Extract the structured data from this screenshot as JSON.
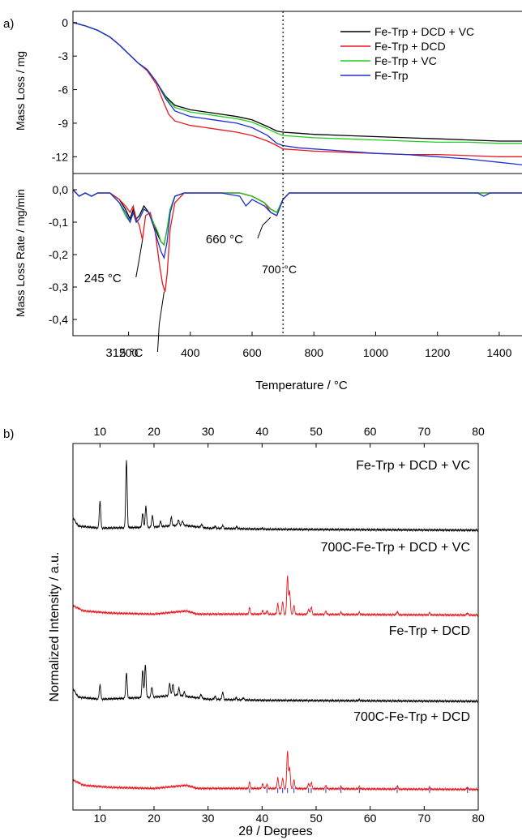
{
  "panel_labels": [
    "a)",
    "b)"
  ],
  "colors": {
    "Fe-Trp + DCD + VC": "#000000",
    "Fe-Trp + DCD": "#e8191e",
    "Fe-Trp + VC": "#22cc22",
    "Fe-Trp": "#1f2fd0",
    "reference_ticks": "#3333cc"
  },
  "chart_data": [
    {
      "id": "tga",
      "type": "line",
      "title": "",
      "xlabel": "Temperature / °C",
      "ylabel": "Mass Loss / mg",
      "xlim": [
        20,
        1500
      ],
      "ylim": [
        -13.5,
        1.0
      ],
      "yticks": [
        0,
        -3,
        -6,
        -9,
        -12
      ],
      "ytick_labels": [
        "0",
        "-3",
        "-6",
        "-9",
        "-12"
      ],
      "legend_position": "top-right",
      "grid": false,
      "series": [
        {
          "name": "Fe-Trp + DCD + VC",
          "x": [
            20,
            60,
            100,
            140,
            170,
            200,
            230,
            260,
            290,
            320,
            350,
            400,
            450,
            500,
            550,
            600,
            650,
            680,
            700,
            750,
            800,
            900,
            1000,
            1100,
            1200,
            1300,
            1400,
            1500
          ],
          "y": [
            0,
            -0.3,
            -0.7,
            -1.3,
            -2.0,
            -2.8,
            -3.6,
            -4.2,
            -5.3,
            -6.6,
            -7.4,
            -7.8,
            -8.0,
            -8.2,
            -8.4,
            -8.7,
            -9.3,
            -9.7,
            -9.8,
            -9.9,
            -10.0,
            -10.1,
            -10.2,
            -10.3,
            -10.4,
            -10.5,
            -10.6,
            -10.6
          ]
        },
        {
          "name": "Fe-Trp + DCD",
          "x": [
            20,
            60,
            100,
            140,
            170,
            200,
            230,
            260,
            290,
            310,
            330,
            350,
            400,
            450,
            500,
            550,
            600,
            650,
            680,
            700,
            750,
            800,
            900,
            1000,
            1100,
            1200,
            1300,
            1400,
            1500
          ],
          "y": [
            0,
            -0.3,
            -0.7,
            -1.3,
            -2.0,
            -2.8,
            -3.6,
            -4.3,
            -5.5,
            -6.9,
            -8.2,
            -8.8,
            -9.2,
            -9.4,
            -9.6,
            -9.8,
            -10.1,
            -10.6,
            -11.0,
            -11.3,
            -11.4,
            -11.5,
            -11.6,
            -11.7,
            -11.8,
            -11.8,
            -11.9,
            -12.0,
            -12.0
          ]
        },
        {
          "name": "Fe-Trp + VC",
          "x": [
            20,
            60,
            100,
            140,
            170,
            200,
            230,
            260,
            290,
            320,
            350,
            400,
            450,
            500,
            550,
            600,
            650,
            680,
            700,
            750,
            800,
            900,
            1000,
            1100,
            1200,
            1300,
            1400,
            1500
          ],
          "y": [
            0,
            -0.3,
            -0.7,
            -1.3,
            -2.0,
            -2.8,
            -3.6,
            -4.2,
            -5.3,
            -6.7,
            -7.6,
            -8.0,
            -8.2,
            -8.4,
            -8.6,
            -8.9,
            -9.5,
            -9.9,
            -10.1,
            -10.2,
            -10.3,
            -10.4,
            -10.5,
            -10.6,
            -10.7,
            -10.7,
            -10.8,
            -10.8
          ]
        },
        {
          "name": "Fe-Trp",
          "x": [
            20,
            60,
            100,
            140,
            170,
            200,
            230,
            260,
            290,
            320,
            350,
            400,
            450,
            500,
            550,
            600,
            650,
            680,
            700,
            750,
            800,
            900,
            1000,
            1100,
            1200,
            1300,
            1400,
            1500
          ],
          "y": [
            0,
            -0.3,
            -0.7,
            -1.3,
            -2.0,
            -2.8,
            -3.6,
            -4.2,
            -5.3,
            -6.8,
            -7.9,
            -8.4,
            -8.6,
            -8.8,
            -9.0,
            -9.4,
            -10.1,
            -10.8,
            -11.0,
            -11.2,
            -11.3,
            -11.5,
            -11.7,
            -11.8,
            -12.0,
            -12.2,
            -12.5,
            -12.8
          ]
        }
      ]
    },
    {
      "id": "dtg",
      "type": "line",
      "title": "",
      "xlabel": "Temperature / °C",
      "ylabel": "Mass Loss Rate / mg/min",
      "xlim": [
        20,
        1500
      ],
      "ylim": [
        -0.45,
        0.05
      ],
      "xticks": [
        200,
        400,
        600,
        800,
        1000,
        1200,
        1400
      ],
      "xtick_labels": [
        "200",
        "400",
        "600",
        "800",
        "1000",
        "1200",
        "1400"
      ],
      "yticks": [
        0.0,
        -0.1,
        -0.2,
        -0.3,
        -0.4
      ],
      "ytick_labels": [
        "0,0",
        "-0,1",
        "-0,2",
        "-0,3",
        "-0,4"
      ],
      "vertical_marker": {
        "x": 700,
        "label": "700 °C"
      },
      "annotations": [
        {
          "text": "245 °C",
          "x": 245,
          "y": -0.155
        },
        {
          "text": "315 °C",
          "x": 315,
          "y": -0.315
        },
        {
          "text": "660 °C",
          "x": 660,
          "y": -0.085
        }
      ],
      "series": [
        {
          "name": "Fe-Trp + DCD + VC",
          "x": [
            20,
            40,
            60,
            80,
            100,
            140,
            170,
            190,
            205,
            215,
            225,
            235,
            250,
            265,
            280,
            295,
            305,
            315,
            325,
            335,
            350,
            380,
            420,
            500,
            560,
            600,
            640,
            660,
            680,
            700,
            720,
            800,
            1000,
            1200,
            1350,
            1400,
            1500
          ],
          "y": [
            0,
            -0.02,
            -0.01,
            -0.02,
            -0.01,
            -0.01,
            -0.03,
            -0.06,
            -0.09,
            -0.06,
            -0.09,
            -0.08,
            -0.05,
            -0.07,
            -0.1,
            -0.14,
            -0.16,
            -0.17,
            -0.12,
            -0.06,
            -0.02,
            -0.01,
            -0.01,
            -0.01,
            -0.01,
            -0.02,
            -0.04,
            -0.06,
            -0.07,
            -0.03,
            -0.01,
            -0.01,
            -0.01,
            -0.01,
            -0.01,
            -0.01,
            -0.01
          ]
        },
        {
          "name": "Fe-Trp + DCD",
          "x": [
            20,
            40,
            60,
            80,
            100,
            140,
            170,
            190,
            205,
            215,
            225,
            235,
            245,
            255,
            270,
            285,
            300,
            310,
            318,
            325,
            335,
            350,
            380,
            420,
            500,
            560,
            600,
            640,
            660,
            680,
            700,
            720,
            800,
            1000,
            1200,
            1350,
            1400,
            1500
          ],
          "y": [
            0,
            -0.02,
            -0.01,
            -0.02,
            -0.01,
            -0.01,
            -0.03,
            -0.05,
            -0.07,
            -0.05,
            -0.09,
            -0.11,
            -0.155,
            -0.08,
            -0.07,
            -0.12,
            -0.23,
            -0.29,
            -0.315,
            -0.26,
            -0.12,
            -0.04,
            -0.01,
            -0.01,
            -0.01,
            -0.01,
            -0.02,
            -0.04,
            -0.07,
            -0.08,
            -0.03,
            -0.01,
            -0.01,
            -0.01,
            -0.01,
            -0.01,
            -0.01,
            -0.01
          ]
        },
        {
          "name": "Fe-Trp + VC",
          "x": [
            20,
            40,
            60,
            80,
            100,
            140,
            170,
            190,
            205,
            215,
            225,
            235,
            250,
            265,
            280,
            295,
            305,
            315,
            325,
            335,
            350,
            380,
            420,
            500,
            560,
            600,
            640,
            660,
            680,
            700,
            720,
            800,
            1000,
            1200,
            1350,
            1400,
            1500
          ],
          "y": [
            0,
            -0.02,
            -0.01,
            -0.02,
            -0.01,
            -0.01,
            -0.04,
            -0.08,
            -0.1,
            -0.07,
            -0.1,
            -0.09,
            -0.06,
            -0.07,
            -0.1,
            -0.13,
            -0.16,
            -0.17,
            -0.12,
            -0.06,
            -0.02,
            -0.01,
            -0.01,
            -0.01,
            -0.01,
            -0.02,
            -0.04,
            -0.06,
            -0.07,
            -0.03,
            -0.01,
            -0.01,
            -0.01,
            -0.01,
            -0.01,
            -0.01,
            -0.01
          ]
        },
        {
          "name": "Fe-Trp",
          "x": [
            20,
            40,
            60,
            80,
            100,
            140,
            170,
            190,
            205,
            215,
            225,
            235,
            250,
            265,
            280,
            295,
            305,
            315,
            325,
            335,
            350,
            380,
            420,
            500,
            560,
            580,
            600,
            640,
            660,
            680,
            700,
            720,
            800,
            1000,
            1200,
            1330,
            1350,
            1370,
            1400,
            1500
          ],
          "y": [
            0,
            -0.02,
            -0.01,
            -0.02,
            -0.01,
            -0.01,
            -0.04,
            -0.07,
            -0.1,
            -0.07,
            -0.1,
            -0.09,
            -0.06,
            -0.07,
            -0.11,
            -0.16,
            -0.19,
            -0.21,
            -0.16,
            -0.07,
            -0.02,
            -0.01,
            -0.01,
            -0.01,
            -0.02,
            -0.05,
            -0.03,
            -0.05,
            -0.07,
            -0.08,
            -0.03,
            -0.01,
            -0.01,
            -0.01,
            -0.01,
            -0.01,
            -0.02,
            -0.01,
            -0.01,
            -0.01
          ]
        }
      ]
    },
    {
      "id": "xrd",
      "type": "line",
      "title": "",
      "xlabel": "2θ / Degrees",
      "ylabel": "Normalized Intensity / a.u.",
      "xlim": [
        5,
        80
      ],
      "xticks": [
        10,
        20,
        30,
        40,
        50,
        60,
        70,
        80
      ],
      "xtick_labels": [
        "10",
        "20",
        "30",
        "40",
        "50",
        "60",
        "70",
        "80"
      ],
      "y_ticks_shown": false,
      "series": [
        {
          "name": "Fe-Trp + DCD + VC",
          "baseline_offset": 3,
          "background": [
            [
              5,
              0.12
            ],
            [
              6,
              0.04
            ],
            [
              10,
              0.02
            ],
            [
              20,
              0.03
            ],
            [
              25,
              0.05
            ],
            [
              30,
              0.02
            ],
            [
              40,
              0.01
            ],
            [
              80,
              0.0
            ]
          ],
          "peaks": [
            [
              10.0,
              0.26
            ],
            [
              14.9,
              0.64
            ],
            [
              17.9,
              0.13
            ],
            [
              18.5,
              0.2
            ],
            [
              19.7,
              0.11
            ],
            [
              21.2,
              0.05
            ],
            [
              23.2,
              0.08
            ],
            [
              24.5,
              0.05
            ],
            [
              25.3,
              0.04
            ],
            [
              28.8,
              0.03
            ],
            [
              31.3,
              0.02
            ],
            [
              32.7,
              0.03
            ],
            [
              35.3,
              0.02
            ],
            [
              40.0,
              0.01
            ]
          ]
        },
        {
          "name": "700C-Fe-Trp + DCD + VC",
          "baseline_offset": 2,
          "background": [
            [
              5,
              0.1
            ],
            [
              7,
              0.05
            ],
            [
              12,
              0.03
            ],
            [
              20,
              0.02
            ],
            [
              26,
              0.05
            ],
            [
              28,
              0.02
            ],
            [
              40,
              0.02
            ],
            [
              80,
              0.01
            ]
          ],
          "peaks": [
            [
              37.7,
              0.06
            ],
            [
              40.1,
              0.03
            ],
            [
              40.9,
              0.03
            ],
            [
              42.9,
              0.1
            ],
            [
              43.8,
              0.12
            ],
            [
              44.7,
              0.37
            ],
            [
              45.1,
              0.22
            ],
            [
              45.9,
              0.08
            ],
            [
              48.6,
              0.05
            ],
            [
              49.1,
              0.07
            ],
            [
              51.8,
              0.03
            ],
            [
              54.6,
              0.02
            ],
            [
              58.0,
              0.02
            ],
            [
              65.0,
              0.03
            ],
            [
              71.0,
              0.02
            ],
            [
              78.0,
              0.02
            ]
          ]
        },
        {
          "name": "Fe-Trp + DCD",
          "baseline_offset": 1,
          "background": [
            [
              5,
              0.12
            ],
            [
              6,
              0.04
            ],
            [
              10,
              0.02
            ],
            [
              20,
              0.04
            ],
            [
              24,
              0.06
            ],
            [
              30,
              0.02
            ],
            [
              40,
              0.01
            ],
            [
              80,
              0.0
            ]
          ],
          "peaks": [
            [
              10.0,
              0.14
            ],
            [
              14.9,
              0.24
            ],
            [
              17.9,
              0.26
            ],
            [
              18.4,
              0.31
            ],
            [
              19.6,
              0.1
            ],
            [
              22.9,
              0.12
            ],
            [
              23.5,
              0.11
            ],
            [
              24.6,
              0.07
            ],
            [
              25.6,
              0.04
            ],
            [
              28.7,
              0.04
            ],
            [
              31.3,
              0.03
            ],
            [
              32.7,
              0.07
            ],
            [
              35.2,
              0.02
            ],
            [
              36.5,
              0.02
            ],
            [
              58.0,
              0.01
            ]
          ]
        },
        {
          "name": "700C-Fe-Trp + DCD",
          "baseline_offset": 0,
          "background": [
            [
              5,
              0.1
            ],
            [
              7,
              0.05
            ],
            [
              12,
              0.03
            ],
            [
              20,
              0.02
            ],
            [
              26,
              0.05
            ],
            [
              28,
              0.02
            ],
            [
              40,
              0.02
            ],
            [
              80,
              0.01
            ]
          ],
          "peaks": [
            [
              37.7,
              0.06
            ],
            [
              40.1,
              0.04
            ],
            [
              40.9,
              0.04
            ],
            [
              42.9,
              0.1
            ],
            [
              43.8,
              0.1
            ],
            [
              44.7,
              0.36
            ],
            [
              45.1,
              0.2
            ],
            [
              45.9,
              0.08
            ],
            [
              48.6,
              0.05
            ],
            [
              49.1,
              0.06
            ],
            [
              51.8,
              0.03
            ],
            [
              54.6,
              0.02
            ],
            [
              58.0,
              0.02
            ],
            [
              65.0,
              0.03
            ],
            [
              71.0,
              0.02
            ],
            [
              78.0,
              0.02
            ]
          ]
        }
      ],
      "reference_ticks": [
        37.7,
        40.9,
        42.9,
        43.8,
        44.7,
        45.9,
        48.6,
        49.1,
        51.8,
        54.6,
        58.0,
        65.0,
        71.0,
        78.0
      ]
    }
  ]
}
